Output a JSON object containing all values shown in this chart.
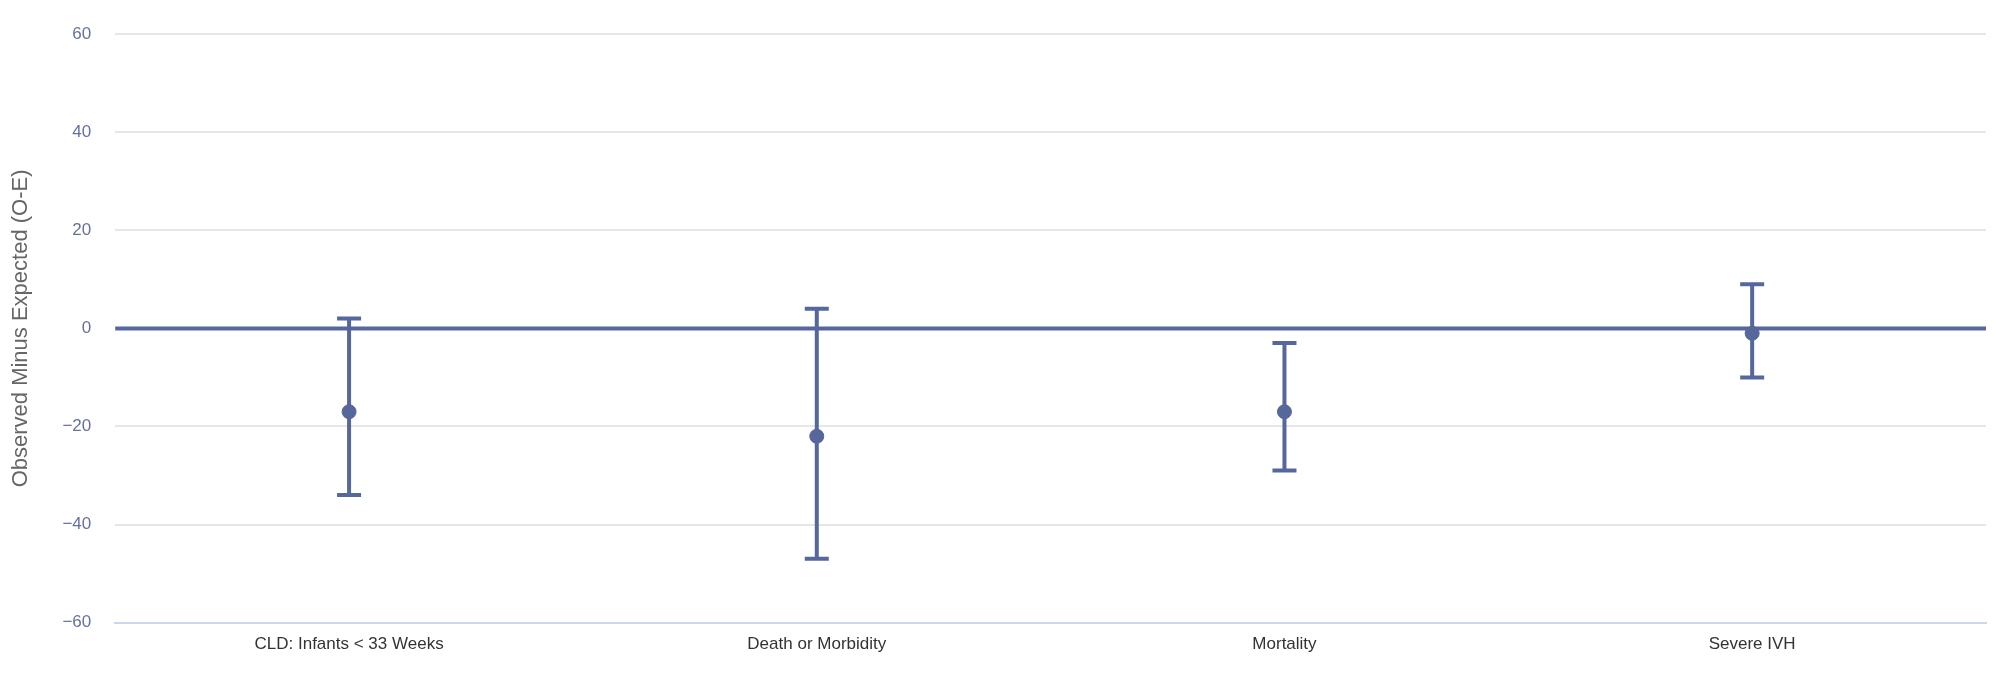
{
  "chart_data": {
    "type": "scatter",
    "ylabel": "Observed Minus Expected (O-E)",
    "categories": [
      "CLD: Infants < 33 Weeks",
      "Death or Morbidity",
      "Mortality",
      "Severe IVH"
    ],
    "series": [
      {
        "color": "#56679b",
        "values": [
          -17,
          -22,
          -17,
          -1
        ],
        "errors": [
          [
            -34,
            2
          ],
          [
            -47,
            4
          ],
          [
            -29,
            -3
          ],
          [
            -10,
            9
          ]
        ]
      }
    ],
    "ylim": [
      -60,
      60
    ],
    "yticks": [
      -60,
      -40,
      -20,
      0,
      20,
      40,
      60
    ],
    "grid": "y",
    "legend": false,
    "marker": "circle",
    "ref_lines": [
      {
        "axis": "y",
        "value": 0,
        "color": "#56679b"
      }
    ]
  }
}
